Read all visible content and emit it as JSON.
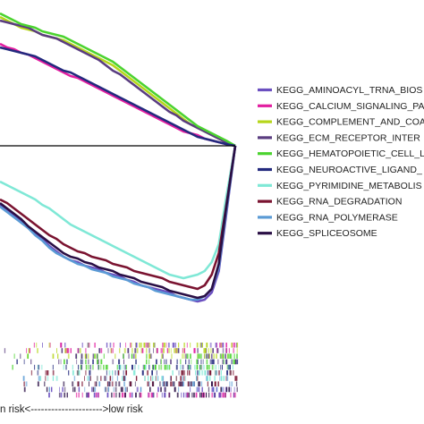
{
  "chart_data": {
    "type": "line",
    "title": "",
    "xlabel": "",
    "ylabel": "",
    "x_axis_text": "n risk<--------------------->low risk",
    "grid": false,
    "legend_placement": "right",
    "series": [
      {
        "name": "KEGG_AMINOACYL_TRNA_BIOS",
        "color": "#6b4fc0",
        "group": "low",
        "x": [
          0,
          3,
          6,
          9,
          12,
          15,
          18,
          21,
          24,
          27,
          30,
          33,
          36,
          39,
          42,
          45,
          48,
          51,
          54,
          57,
          60,
          63,
          66,
          69,
          72,
          75,
          78,
          81,
          84,
          87,
          90,
          93,
          96,
          100
        ],
        "y": [
          -0.33,
          -0.36,
          -0.39,
          -0.42,
          -0.46,
          -0.49,
          -0.52,
          -0.56,
          -0.59,
          -0.62,
          -0.64,
          -0.65,
          -0.67,
          -0.68,
          -0.69,
          -0.71,
          -0.72,
          -0.73,
          -0.75,
          -0.76,
          -0.78,
          -0.79,
          -0.8,
          -0.81,
          -0.82,
          -0.84,
          -0.85,
          -0.86,
          -0.87,
          -0.86,
          -0.82,
          -0.7,
          -0.4,
          0.0
        ]
      },
      {
        "name": "KEGG_CALCIUM_SIGNALING_PA",
        "color": "#e21ea0",
        "group": "high",
        "x": [
          0,
          3,
          6,
          9,
          12,
          15,
          18,
          21,
          24,
          27,
          30,
          33,
          36,
          39,
          42,
          45,
          48,
          51,
          54,
          57,
          60,
          63,
          66,
          69,
          72,
          75,
          78,
          81,
          84,
          87,
          90,
          93,
          96,
          100
        ],
        "y": [
          0.57,
          0.55,
          0.54,
          0.52,
          0.51,
          0.49,
          0.47,
          0.45,
          0.43,
          0.41,
          0.39,
          0.38,
          0.36,
          0.34,
          0.32,
          0.3,
          0.28,
          0.26,
          0.24,
          0.22,
          0.2,
          0.18,
          0.16,
          0.14,
          0.12,
          0.1,
          0.08,
          0.07,
          0.06,
          0.04,
          0.03,
          0.02,
          0.01,
          0.0
        ]
      },
      {
        "name": "KEGG_COMPLEMENT_AND_COA",
        "color": "#b6d61a",
        "group": "high",
        "x": [
          0,
          3,
          6,
          9,
          12,
          15,
          18,
          21,
          24,
          27,
          30,
          33,
          36,
          39,
          42,
          45,
          48,
          51,
          54,
          57,
          60,
          63,
          66,
          69,
          72,
          75,
          78,
          81,
          84,
          87,
          90,
          93,
          96,
          100
        ],
        "y": [
          0.72,
          0.7,
          0.68,
          0.66,
          0.65,
          0.64,
          0.62,
          0.61,
          0.6,
          0.59,
          0.57,
          0.55,
          0.53,
          0.51,
          0.49,
          0.47,
          0.45,
          0.42,
          0.39,
          0.36,
          0.33,
          0.3,
          0.27,
          0.24,
          0.21,
          0.18,
          0.15,
          0.12,
          0.1,
          0.08,
          0.06,
          0.04,
          0.02,
          0.0
        ]
      },
      {
        "name": "KEGG_ECM_RECEPTOR_INTER",
        "color": "#5a3d80",
        "group": "high",
        "x": [
          0,
          3,
          6,
          9,
          12,
          15,
          18,
          21,
          24,
          27,
          30,
          33,
          36,
          39,
          42,
          45,
          48,
          51,
          54,
          57,
          60,
          63,
          66,
          69,
          72,
          75,
          78,
          81,
          84,
          87,
          90,
          93,
          96,
          100
        ],
        "y": [
          0.7,
          0.69,
          0.68,
          0.67,
          0.66,
          0.64,
          0.62,
          0.61,
          0.6,
          0.58,
          0.56,
          0.54,
          0.52,
          0.5,
          0.48,
          0.45,
          0.42,
          0.4,
          0.37,
          0.34,
          0.31,
          0.28,
          0.25,
          0.22,
          0.19,
          0.17,
          0.14,
          0.12,
          0.1,
          0.08,
          0.06,
          0.04,
          0.02,
          0.0
        ]
      },
      {
        "name": "KEGG_HEMATOPOIETIC_CELL_L",
        "color": "#4bd32f",
        "group": "high",
        "x": [
          0,
          3,
          6,
          9,
          12,
          15,
          18,
          21,
          24,
          27,
          30,
          33,
          36,
          39,
          42,
          45,
          48,
          51,
          54,
          57,
          60,
          63,
          66,
          69,
          72,
          75,
          78,
          81,
          84,
          87,
          90,
          93,
          96,
          100
        ],
        "y": [
          0.74,
          0.72,
          0.7,
          0.68,
          0.67,
          0.66,
          0.64,
          0.63,
          0.62,
          0.61,
          0.59,
          0.57,
          0.55,
          0.53,
          0.51,
          0.49,
          0.47,
          0.44,
          0.41,
          0.38,
          0.35,
          0.32,
          0.29,
          0.26,
          0.23,
          0.2,
          0.17,
          0.14,
          0.11,
          0.09,
          0.07,
          0.05,
          0.03,
          0.0
        ]
      },
      {
        "name": "KEGG_NEUROACTIVE_LIGAND_",
        "color": "#232a7e",
        "group": "high",
        "x": [
          0,
          3,
          6,
          9,
          12,
          15,
          18,
          21,
          24,
          27,
          30,
          33,
          36,
          39,
          42,
          45,
          48,
          51,
          54,
          57,
          60,
          63,
          66,
          69,
          72,
          75,
          78,
          81,
          84,
          87,
          90,
          93,
          96,
          100
        ],
        "y": [
          0.55,
          0.54,
          0.53,
          0.52,
          0.51,
          0.5,
          0.48,
          0.46,
          0.44,
          0.42,
          0.41,
          0.39,
          0.37,
          0.35,
          0.33,
          0.31,
          0.29,
          0.27,
          0.25,
          0.23,
          0.21,
          0.19,
          0.17,
          0.15,
          0.13,
          0.11,
          0.09,
          0.07,
          0.05,
          0.04,
          0.03,
          0.02,
          0.01,
          0.0
        ]
      },
      {
        "name": "KEGG_PYRIMIDINE_METABOLIS",
        "color": "#7fe8d6",
        "group": "low",
        "x": [
          0,
          3,
          6,
          9,
          12,
          15,
          18,
          21,
          24,
          27,
          30,
          33,
          36,
          39,
          42,
          45,
          48,
          51,
          54,
          57,
          60,
          63,
          66,
          69,
          72,
          75,
          78,
          81,
          84,
          87,
          90,
          93,
          96,
          100
        ],
        "y": [
          -0.2,
          -0.22,
          -0.24,
          -0.26,
          -0.28,
          -0.3,
          -0.33,
          -0.35,
          -0.38,
          -0.41,
          -0.44,
          -0.46,
          -0.48,
          -0.5,
          -0.52,
          -0.54,
          -0.56,
          -0.58,
          -0.6,
          -0.62,
          -0.64,
          -0.66,
          -0.68,
          -0.7,
          -0.72,
          -0.73,
          -0.74,
          -0.73,
          -0.72,
          -0.7,
          -0.65,
          -0.55,
          -0.3,
          0.0
        ]
      },
      {
        "name": "KEGG_RNA_DEGRADATION",
        "color": "#7a1330",
        "group": "low",
        "x": [
          0,
          3,
          6,
          9,
          12,
          15,
          18,
          21,
          24,
          27,
          30,
          33,
          36,
          39,
          42,
          45,
          48,
          51,
          54,
          57,
          60,
          63,
          66,
          69,
          72,
          75,
          78,
          81,
          84,
          87,
          90,
          93,
          96,
          100
        ],
        "y": [
          -0.3,
          -0.32,
          -0.35,
          -0.38,
          -0.41,
          -0.44,
          -0.47,
          -0.5,
          -0.52,
          -0.55,
          -0.57,
          -0.59,
          -0.6,
          -0.62,
          -0.63,
          -0.64,
          -0.66,
          -0.67,
          -0.68,
          -0.7,
          -0.71,
          -0.72,
          -0.73,
          -0.74,
          -0.76,
          -0.77,
          -0.78,
          -0.79,
          -0.8,
          -0.78,
          -0.72,
          -0.6,
          -0.35,
          0.0
        ]
      },
      {
        "name": "KEGG_RNA_POLYMERASE",
        "color": "#5b9bd5",
        "group": "low",
        "x": [
          0,
          3,
          6,
          9,
          12,
          15,
          18,
          21,
          24,
          27,
          30,
          33,
          36,
          39,
          42,
          45,
          48,
          51,
          54,
          57,
          60,
          63,
          66,
          69,
          72,
          75,
          78,
          81,
          84,
          87,
          90,
          93,
          96,
          100
        ],
        "y": [
          -0.34,
          -0.37,
          -0.4,
          -0.43,
          -0.46,
          -0.5,
          -0.53,
          -0.57,
          -0.6,
          -0.62,
          -0.64,
          -0.66,
          -0.67,
          -0.69,
          -0.7,
          -0.71,
          -0.73,
          -0.74,
          -0.75,
          -0.77,
          -0.78,
          -0.79,
          -0.81,
          -0.82,
          -0.83,
          -0.84,
          -0.85,
          -0.86,
          -0.86,
          -0.84,
          -0.8,
          -0.68,
          -0.38,
          0.0
        ]
      },
      {
        "name": "KEGG_SPLICEOSOME",
        "color": "#2a0f45",
        "group": "low",
        "x": [
          0,
          3,
          6,
          9,
          12,
          15,
          18,
          21,
          24,
          27,
          30,
          33,
          36,
          39,
          42,
          45,
          48,
          51,
          54,
          57,
          60,
          63,
          66,
          69,
          72,
          75,
          78,
          81,
          84,
          87,
          90,
          93,
          96,
          100
        ],
        "y": [
          -0.32,
          -0.35,
          -0.38,
          -0.41,
          -0.45,
          -0.48,
          -0.51,
          -0.54,
          -0.57,
          -0.6,
          -0.62,
          -0.63,
          -0.65,
          -0.66,
          -0.68,
          -0.69,
          -0.7,
          -0.72,
          -0.73,
          -0.74,
          -0.76,
          -0.77,
          -0.78,
          -0.79,
          -0.81,
          -0.82,
          -0.83,
          -0.84,
          -0.85,
          -0.84,
          -0.8,
          -0.66,
          -0.36,
          0.0
        ]
      }
    ],
    "barcode_colors": [
      "#6b4fc0",
      "#e21ea0",
      "#b6d61a",
      "#5a3d80",
      "#4bd32f",
      "#232a7e",
      "#7fe8d6",
      "#7a1330",
      "#5b9bd5",
      "#2a0f45"
    ]
  }
}
